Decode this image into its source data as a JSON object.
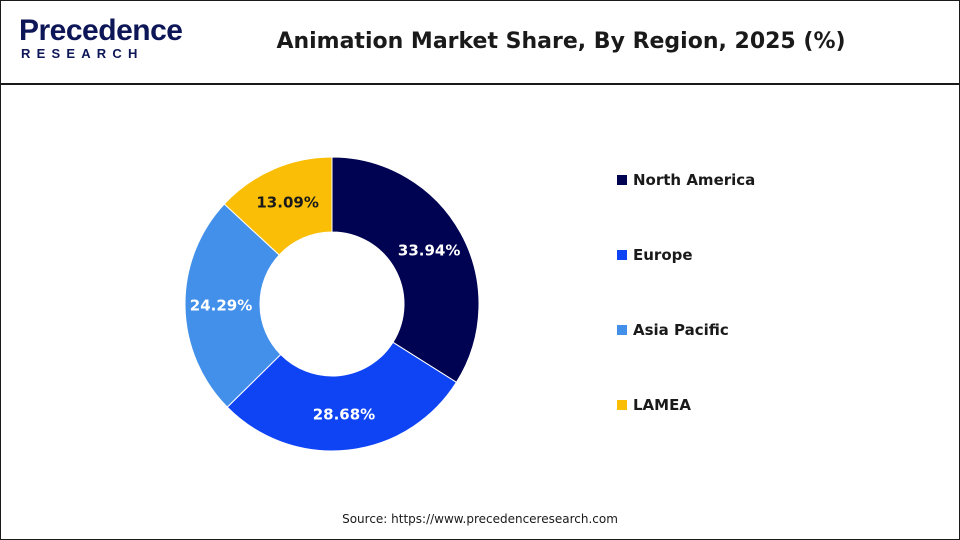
{
  "brand": {
    "logo_top": "Precedence",
    "logo_bottom": "RESEARCH",
    "color": "#0d1657"
  },
  "chart_data": {
    "type": "pie",
    "variant": "donut",
    "title": "Animation Market Share, By Region, 2025 (%)",
    "legend_position": "right",
    "slices": [
      {
        "label": "North America",
        "value": 33.94,
        "display": "33.94%",
        "color": "#000351"
      },
      {
        "label": "Europe",
        "value": 28.68,
        "display": "28.68%",
        "color": "#0f44f5"
      },
      {
        "label": "Asia Pacific",
        "value": 24.29,
        "display": "24.29%",
        "color": "#4290ea"
      },
      {
        "label": "LAMEA",
        "value": 13.09,
        "display": "13.09%",
        "color": "#f9be05"
      }
    ]
  },
  "source": "Source: https://www.precedenceresearch.com"
}
